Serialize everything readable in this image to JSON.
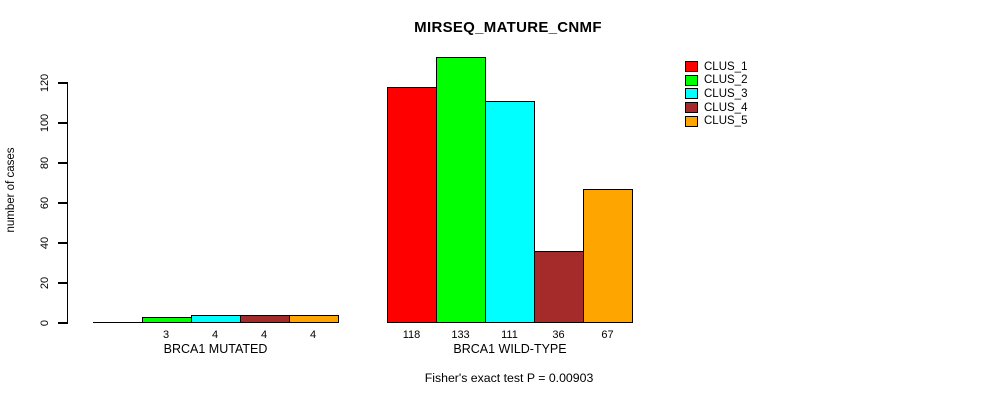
{
  "title": "MIRSEQ_MATURE_CNMF",
  "y_axis": {
    "label": "number of cases",
    "ticks": [
      0,
      20,
      40,
      60,
      80,
      100,
      120
    ]
  },
  "x_groups": [
    "BRCA1 MUTATED",
    "BRCA1 WILD-TYPE"
  ],
  "footer": "Fisher's exact test P = 0.00903",
  "legend": {
    "position": "top-right",
    "entries": [
      {
        "label": "CLUS_1",
        "color": "#FF0000"
      },
      {
        "label": "CLUS_2",
        "color": "#00FF00"
      },
      {
        "label": "CLUS_3",
        "color": "#00FFFF"
      },
      {
        "label": "CLUS_4",
        "color": "#A52A2A"
      },
      {
        "label": "CLUS_5",
        "color": "#FFA500"
      }
    ]
  },
  "chart_data": {
    "type": "bar",
    "title": "MIRSEQ_MATURE_CNMF",
    "xlabel": "",
    "ylabel": "number of cases",
    "categories": [
      "BRCA1 MUTATED",
      "BRCA1 WILD-TYPE"
    ],
    "series": [
      {
        "name": "CLUS_1",
        "color": "#FF0000",
        "values": [
          0,
          118
        ]
      },
      {
        "name": "CLUS_2",
        "color": "#00FF00",
        "values": [
          3,
          133
        ]
      },
      {
        "name": "CLUS_3",
        "color": "#00FFFF",
        "values": [
          4,
          111
        ]
      },
      {
        "name": "CLUS_4",
        "color": "#A52A2A",
        "values": [
          4,
          36
        ]
      },
      {
        "name": "CLUS_5",
        "color": "#FFA500",
        "values": [
          4,
          67
        ]
      }
    ],
    "bar_value_labels": [
      [
        "",
        "3",
        "4",
        "4",
        "4"
      ],
      [
        "118",
        "133",
        "111",
        "36",
        "67"
      ]
    ],
    "yticks": [
      0,
      20,
      40,
      60,
      80,
      100,
      120
    ],
    "ylim": [
      0,
      133
    ],
    "grid": false,
    "legend_position": "top-right",
    "annotation": "Fisher's exact test P = 0.00903"
  }
}
